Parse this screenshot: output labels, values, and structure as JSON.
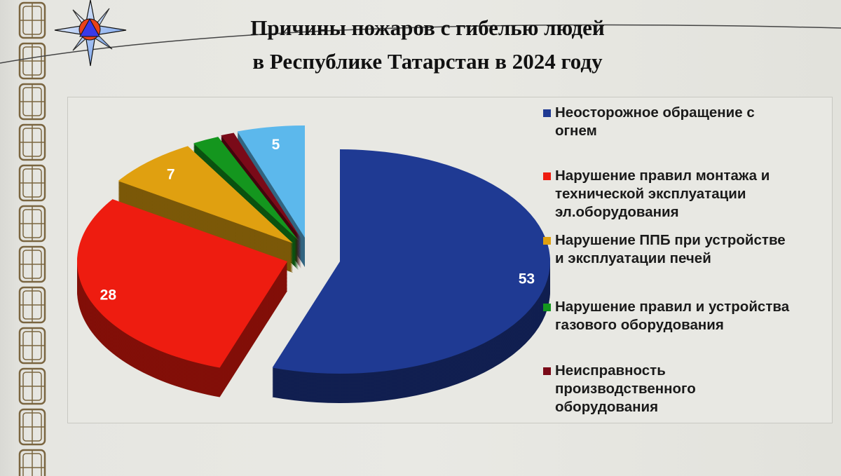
{
  "title_lines": [
    "Причины пожаров с гибелью людей",
    "в Республике Татарстан в 2024 году"
  ],
  "chart_data": {
    "type": "pie",
    "style": "3d-exploded",
    "title": "Причины пожаров с гибелью людей в Республике Татарстан в 2024 году",
    "legend_position": "right",
    "slices": [
      {
        "name": "Неосторожное обращение с огнем",
        "value": 53,
        "label": "53",
        "color": "#1f3a93"
      },
      {
        "name": "Нарушение правил монтажа и технической эксплуатации эл.оборудования",
        "value": 28,
        "label": "28",
        "color": "#ee1c10"
      },
      {
        "name": "Нарушение ППБ при устройстве и эксплуатации печей",
        "value": 7,
        "label": "7",
        "color": "#e0a010"
      },
      {
        "name": "Нарушение правил и устройства газового оборудования",
        "value": 2,
        "label": "",
        "color": "#14961e"
      },
      {
        "name": "Неисправность производственного оборудования",
        "value": 1,
        "label": "",
        "color": "#7a0a18"
      },
      {
        "name": "",
        "value": 5,
        "label": "5",
        "color": "#5cb8ec"
      }
    ]
  },
  "legend": [
    {
      "lines": [
        "Неосторожное обращение с",
        "огнем"
      ],
      "color": "#1f3a93"
    },
    {
      "lines": [
        "Нарушение правил монтажа и",
        "технической эксплуатации",
        "эл.оборудования"
      ],
      "color": "#ee1c10"
    },
    {
      "lines": [
        "Нарушение ППБ при устройстве",
        "и эксплуатации печей"
      ],
      "color": "#e0a010"
    },
    {
      "lines": [
        "Нарушение правил и устройства",
        "газового оборудования"
      ],
      "color": "#14961e"
    },
    {
      "lines": [
        "Неисправность",
        "производственного",
        "оборудования"
      ],
      "color": "#7a0a18"
    }
  ],
  "icons": {
    "emblem": "emergency-ministry-star-emblem",
    "ornament": "tatar-border-ornament"
  }
}
